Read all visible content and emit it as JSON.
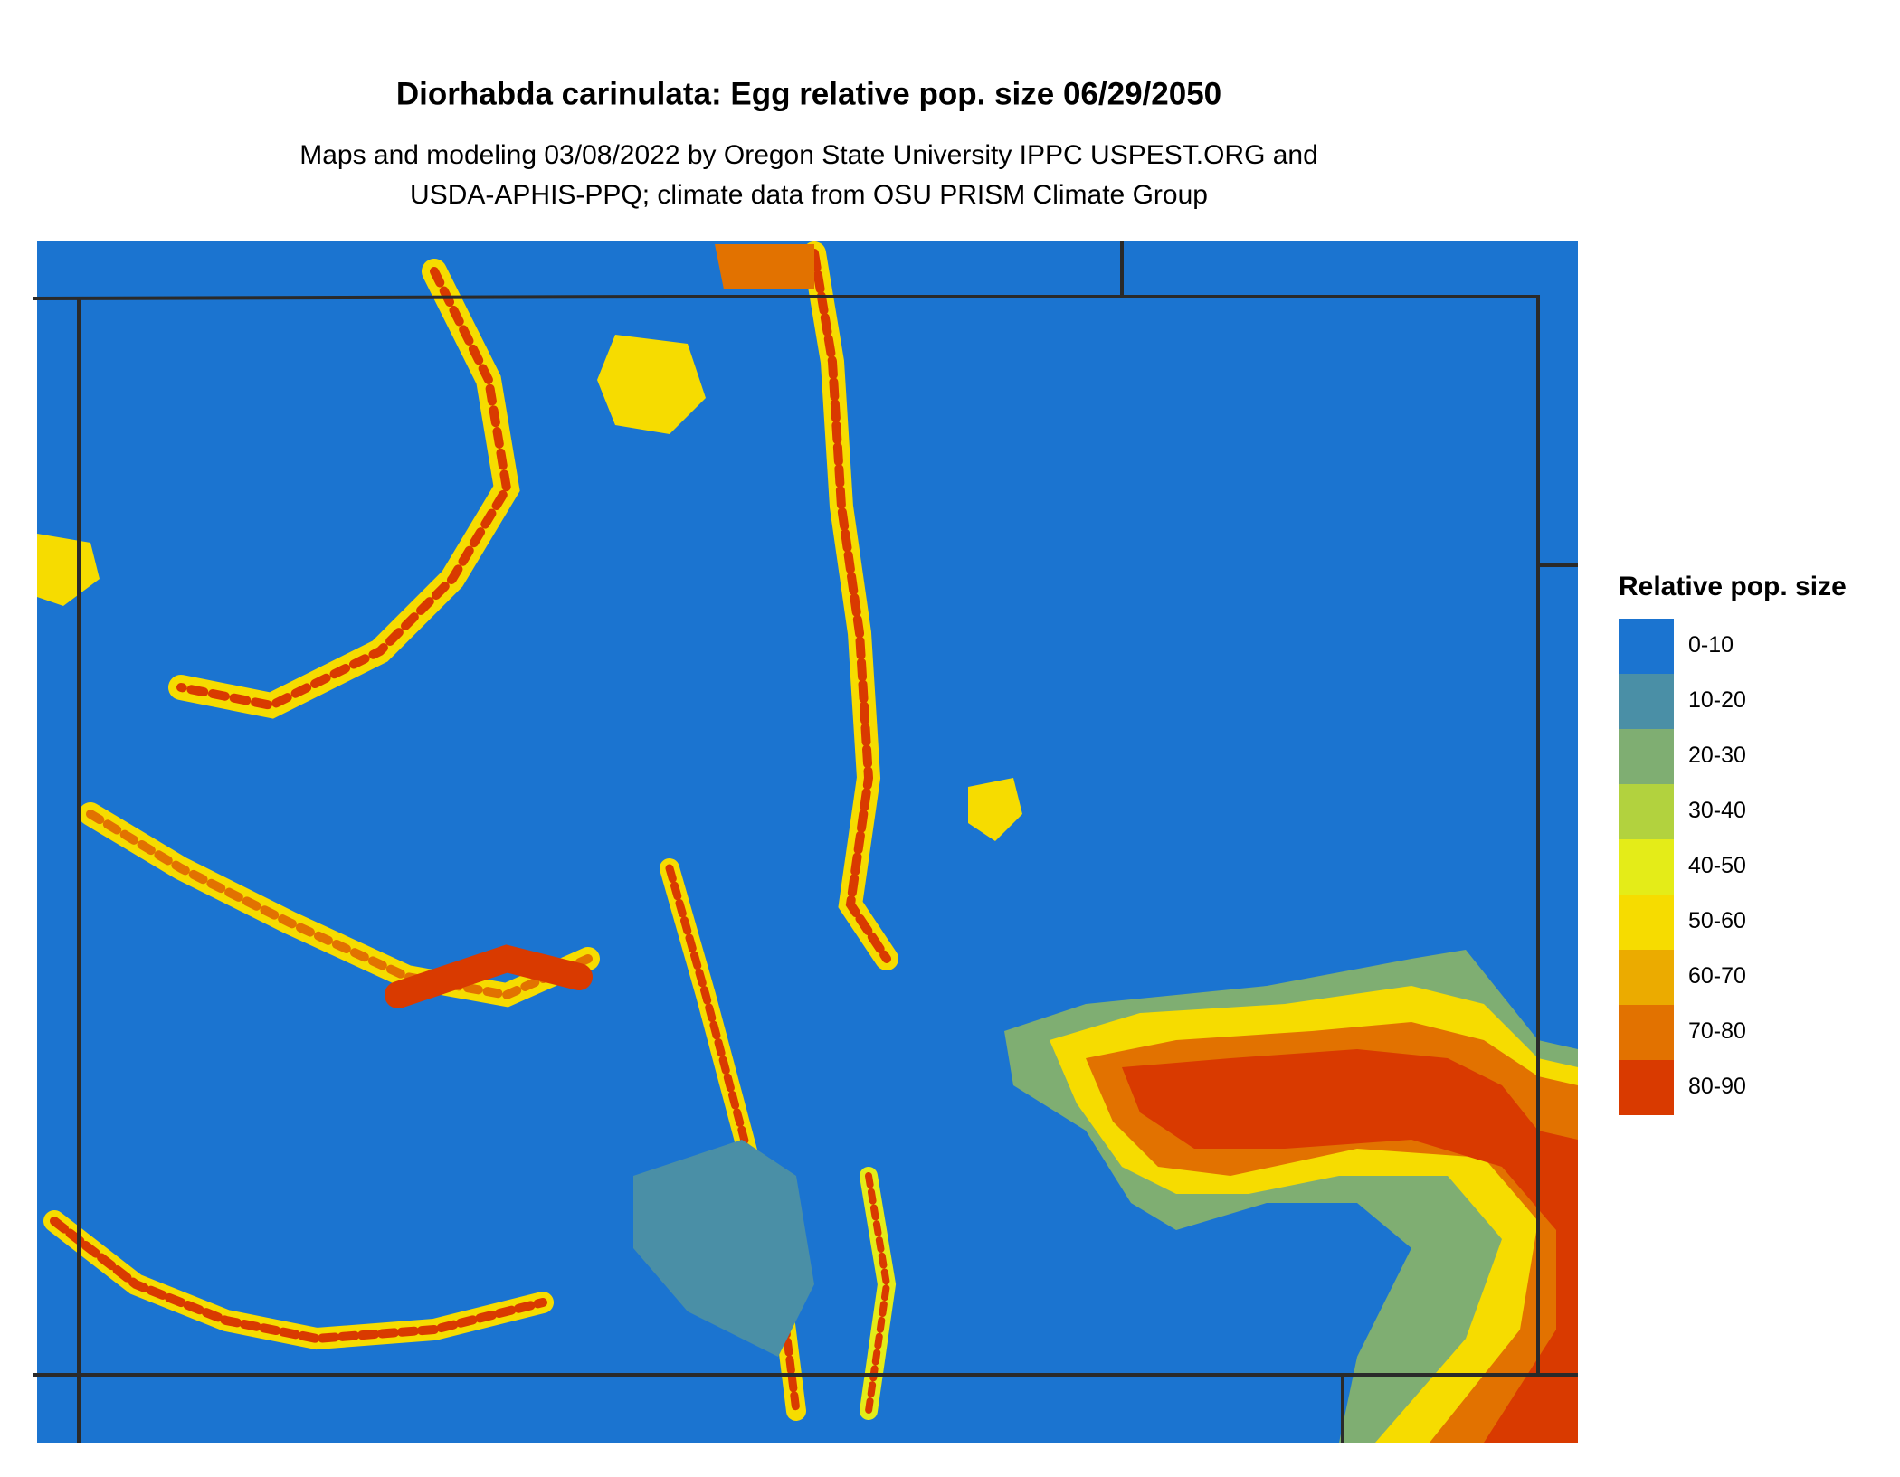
{
  "header": {
    "title": "Diorhabda carinulata: Egg relative pop. size 06/29/2050",
    "subtitle": [
      "Maps and modeling 03/08/2022 by Oregon State University IPPC USPEST.ORG and",
      "USDA-APHIS-PPQ; climate data from OSU PRISM Climate Group"
    ]
  },
  "legend": {
    "title": "Relative pop. size",
    "items": [
      {
        "label": "0-10",
        "color": "#1b74d0"
      },
      {
        "label": "10-20",
        "color": "#4a8fa6"
      },
      {
        "label": "20-30",
        "color": "#7fae72"
      },
      {
        "label": "30-40",
        "color": "#b2d23e"
      },
      {
        "label": "40-50",
        "color": "#e4ec18"
      },
      {
        "label": "50-60",
        "color": "#f6dc00"
      },
      {
        "label": "60-70",
        "color": "#ebab00"
      },
      {
        "label": "70-80",
        "color": "#e27200"
      },
      {
        "label": "80-90",
        "color": "#d93a00"
      }
    ]
  }
}
